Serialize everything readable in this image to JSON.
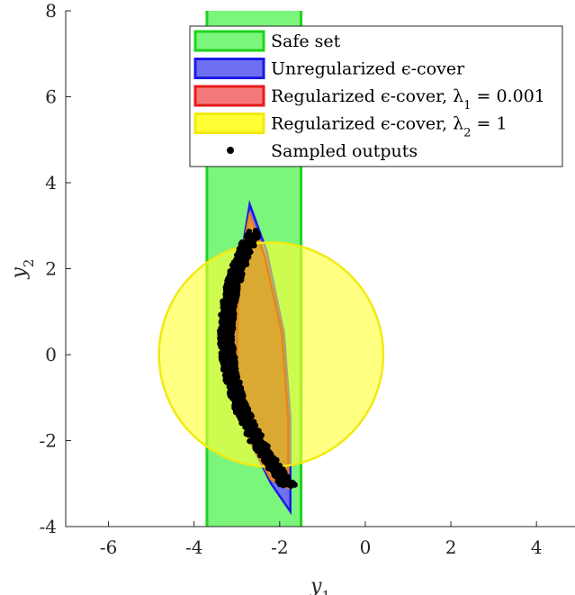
{
  "chart_data": {
    "type": "area",
    "xlabel": "y1",
    "ylabel": "y2",
    "xlim": [
      -7,
      4.9
    ],
    "ylim": [
      -4,
      8
    ],
    "xticks": [
      -6,
      -4,
      -2,
      0,
      2,
      4
    ],
    "yticks": [
      -4,
      -2,
      0,
      2,
      4,
      6,
      8
    ],
    "xtick_labels": [
      "-6",
      "-4",
      "-2",
      "0",
      "2",
      "4"
    ],
    "ytick_labels": [
      "-4",
      "-2",
      "0",
      "2",
      "4",
      "6",
      "8"
    ],
    "grid": false,
    "legend_position": "top-right",
    "series": [
      {
        "name": "Safe set",
        "kind": "band",
        "x_range": [
          -3.7,
          -1.5
        ],
        "fill": "#7CF57C",
        "stroke": "#1ED41E"
      },
      {
        "name": "Unregularized ϵ-cover",
        "kind": "polygon",
        "points": [
          [
            -2.7,
            3.5
          ],
          [
            -2.3,
            2.4
          ],
          [
            -1.9,
            0.5
          ],
          [
            -1.75,
            -1.5
          ],
          [
            -1.75,
            -3.65
          ],
          [
            -2.2,
            -3.0
          ],
          [
            -2.7,
            -2.0
          ],
          [
            -3.0,
            -0.8
          ],
          [
            -3.05,
            0.5
          ],
          [
            -2.95,
            2.0
          ]
        ],
        "fill": "#6F6FF2",
        "stroke": "#1A1AE6"
      },
      {
        "name": "Regularized ϵ-cover, λ1 = 0.001",
        "kind": "polygon",
        "points": [
          [
            -2.7,
            3.25
          ],
          [
            -2.35,
            2.3
          ],
          [
            -1.95,
            0.5
          ],
          [
            -1.8,
            -1.5
          ],
          [
            -1.8,
            -3.1
          ],
          [
            -2.2,
            -2.9
          ],
          [
            -2.7,
            -2.0
          ],
          [
            -3.0,
            -0.7
          ],
          [
            -3.0,
            0.5
          ],
          [
            -2.95,
            2.0
          ]
        ],
        "fill": "#F47A7A",
        "stroke": "#E81A1A"
      },
      {
        "name": "Regularized ϵ-cover, λ2 = 1",
        "kind": "circle",
        "center": [
          -2.2,
          0.0
        ],
        "radius": 2.62,
        "fill": "#FFFF33",
        "stroke": "#F2EA10"
      },
      {
        "name": "Sampled outputs",
        "kind": "scatter",
        "start": [
          -2.6,
          2.85
        ],
        "end": [
          -1.8,
          -3.05
        ],
        "bulge_x": -3.2,
        "count": 900,
        "color": "#000000"
      }
    ],
    "overlap_fill": "#D2A22E"
  }
}
